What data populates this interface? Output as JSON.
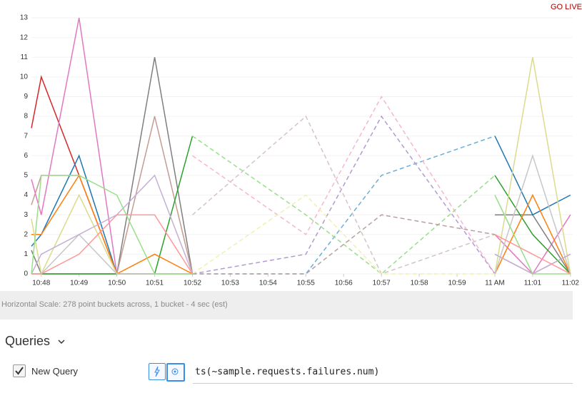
{
  "go_live": "GO LIVE",
  "chart_data": {
    "type": "line",
    "grid": true,
    "x": [
      -0.26,
      0,
      1,
      2,
      3,
      4,
      7,
      9,
      12,
      13,
      14
    ],
    "xlim": [
      -0.26,
      14.06
    ],
    "xticks": [
      {
        "value": 0,
        "label": "10:48"
      },
      {
        "value": 1,
        "label": "10:49"
      },
      {
        "value": 2,
        "label": "10:50"
      },
      {
        "value": 3,
        "label": "10:51"
      },
      {
        "value": 4,
        "label": "10:52"
      },
      {
        "value": 5,
        "label": "10:53"
      },
      {
        "value": 6,
        "label": "10:54"
      },
      {
        "value": 7,
        "label": "10:55"
      },
      {
        "value": 8,
        "label": "10:56"
      },
      {
        "value": 9,
        "label": "10:57"
      },
      {
        "value": 10,
        "label": "10:58"
      },
      {
        "value": 11,
        "label": "10:59"
      },
      {
        "value": 12,
        "label": "11 AM"
      },
      {
        "value": 13,
        "label": "11:01"
      },
      {
        "value": 14,
        "label": "11:02"
      }
    ],
    "ylim": [
      0,
      13
    ],
    "yticks": [
      0,
      1,
      2,
      3,
      4,
      5,
      6,
      7,
      8,
      9,
      10,
      11,
      12,
      13
    ],
    "series": [
      {
        "color": "#d62728",
        "dashed": false,
        "values": [
          7.4,
          10,
          5,
          0,
          null,
          null,
          null,
          null,
          null,
          null,
          null
        ]
      },
      {
        "color": "#e377c2",
        "dashed": false,
        "values": [
          4.8,
          3,
          13,
          0,
          0,
          null,
          null,
          null,
          2,
          0,
          3
        ]
      },
      {
        "color": "#7f7f7f",
        "dashed": false,
        "values": [
          1.2,
          0,
          0,
          0,
          11,
          0,
          null,
          null,
          3,
          3,
          0
        ]
      },
      {
        "color": "#1f77b4",
        "dashed": false,
        "values": [
          1.4,
          2,
          6,
          0,
          0,
          0,
          null,
          null,
          7,
          3,
          4
        ]
      },
      {
        "color": "#c49c94",
        "dashed": false,
        "values": [
          3.5,
          5,
          5,
          0,
          8,
          0,
          null,
          null,
          1,
          0,
          1
        ]
      },
      {
        "color": "#2ca02c",
        "dashed": false,
        "values": [
          0,
          0,
          0,
          0,
          0,
          7,
          null,
          null,
          5,
          2,
          0
        ]
      },
      {
        "color": "#ff7f0e",
        "dashed": false,
        "values": [
          2,
          2,
          5,
          0,
          1,
          0,
          null,
          null,
          0,
          4,
          0
        ]
      },
      {
        "color": "#dbdb8d",
        "dashed": false,
        "values": [
          2.8,
          0,
          4,
          0,
          0,
          0,
          null,
          null,
          0,
          11,
          0
        ]
      },
      {
        "color": "#c7c7c7",
        "dashed": false,
        "values": [
          0,
          0,
          2,
          0,
          0,
          0,
          null,
          null,
          0,
          6,
          0
        ]
      },
      {
        "color": "#c5b0d5",
        "dashed": false,
        "values": [
          0,
          1,
          2,
          3,
          5,
          0,
          null,
          null,
          1,
          0,
          1
        ]
      },
      {
        "color": "#98df8a",
        "dashed": false,
        "values": [
          0,
          5,
          5,
          4,
          0,
          0,
          null,
          null,
          4,
          0,
          0
        ]
      },
      {
        "color": "#ff9896",
        "dashed": false,
        "values": [
          0,
          0,
          1,
          3,
          3,
          0,
          null,
          null,
          2,
          1,
          0
        ]
      },
      {
        "color": "#6baed6",
        "dashed": true,
        "values": [
          null,
          null,
          null,
          null,
          null,
          0,
          0,
          5,
          7,
          null,
          null
        ]
      },
      {
        "color": "#f7b6d2",
        "dashed": true,
        "values": [
          null,
          null,
          null,
          null,
          null,
          6,
          2,
          9,
          0,
          null,
          null
        ]
      },
      {
        "color": "#b39bd0",
        "dashed": true,
        "values": [
          null,
          null,
          null,
          null,
          null,
          0,
          1,
          8,
          0,
          null,
          null
        ]
      },
      {
        "color": "#d5c4c4",
        "dashed": true,
        "values": [
          null,
          null,
          null,
          null,
          null,
          3,
          8,
          0,
          2,
          null,
          null
        ]
      },
      {
        "color": "#98df8a",
        "dashed": true,
        "values": [
          null,
          null,
          null,
          null,
          null,
          7,
          3,
          0,
          5,
          null,
          null
        ]
      },
      {
        "color": "#f0f0b0",
        "dashed": true,
        "values": [
          null,
          null,
          null,
          null,
          null,
          0,
          4,
          0,
          0,
          null,
          null
        ]
      },
      {
        "color": "#b8a0a0",
        "dashed": true,
        "values": [
          null,
          null,
          null,
          null,
          null,
          0,
          0,
          3,
          2,
          null,
          null
        ]
      }
    ]
  },
  "horizontal_scale": "Horizontal Scale: 278 point buckets across, 1 bucket - 4 sec (est)",
  "queries": {
    "title": "Queries",
    "items": [
      {
        "name": "New Query",
        "expression": "ts(~sample.requests.failures.num)"
      }
    ]
  }
}
